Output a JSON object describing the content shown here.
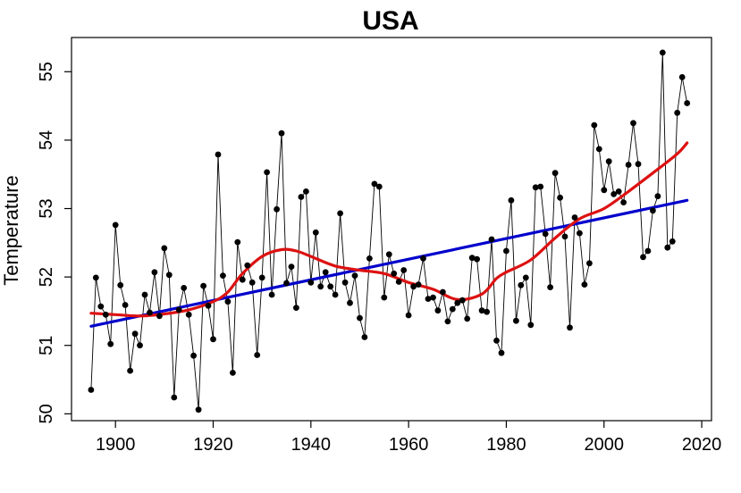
{
  "chart_data": {
    "type": "line",
    "title": "USA",
    "xlabel": "",
    "ylabel": "Temperature",
    "xlim": [
      1891,
      2022
    ],
    "ylim": [
      49.9,
      55.5
    ],
    "x_ticks": [
      1900,
      1920,
      1940,
      1960,
      1980,
      2000,
      2020
    ],
    "y_ticks": [
      50,
      51,
      52,
      53,
      54,
      55
    ],
    "grid": false,
    "legend": "none",
    "series": [
      {
        "role": "observed",
        "color": "#000000",
        "x": [
          1895,
          1896,
          1897,
          1898,
          1899,
          1900,
          1901,
          1902,
          1903,
          1904,
          1905,
          1906,
          1907,
          1908,
          1909,
          1910,
          1911,
          1912,
          1913,
          1914,
          1915,
          1916,
          1917,
          1918,
          1919,
          1920,
          1921,
          1922,
          1923,
          1924,
          1925,
          1926,
          1927,
          1928,
          1929,
          1930,
          1931,
          1932,
          1933,
          1934,
          1935,
          1936,
          1937,
          1938,
          1939,
          1940,
          1941,
          1942,
          1943,
          1944,
          1945,
          1946,
          1947,
          1948,
          1949,
          1950,
          1951,
          1952,
          1953,
          1954,
          1955,
          1956,
          1957,
          1958,
          1959,
          1960,
          1961,
          1962,
          1963,
          1964,
          1965,
          1966,
          1967,
          1968,
          1969,
          1970,
          1971,
          1972,
          1973,
          1974,
          1975,
          1976,
          1977,
          1978,
          1979,
          1980,
          1981,
          1982,
          1983,
          1984,
          1985,
          1986,
          1987,
          1988,
          1989,
          1990,
          1991,
          1992,
          1993,
          1994,
          1995,
          1996,
          1997,
          1998,
          1999,
          2000,
          2001,
          2002,
          2003,
          2004,
          2005,
          2006,
          2007,
          2008,
          2009,
          2010,
          2011,
          2012,
          2013,
          2014,
          2015,
          2016,
          2017
        ],
        "y": [
          50.35,
          51.99,
          51.57,
          51.45,
          51.02,
          52.76,
          51.88,
          51.59,
          50.63,
          51.17,
          51.0,
          51.74,
          51.48,
          52.07,
          51.43,
          52.42,
          52.03,
          50.24,
          51.52,
          51.84,
          51.45,
          50.85,
          50.06,
          51.87,
          51.58,
          51.09,
          53.79,
          52.02,
          51.64,
          50.6,
          52.51,
          51.96,
          52.17,
          51.92,
          50.86,
          51.99,
          53.53,
          51.74,
          52.99,
          54.1,
          51.91,
          52.15,
          51.55,
          53.17,
          53.25,
          51.92,
          52.65,
          51.86,
          52.07,
          51.86,
          51.74,
          52.93,
          51.92,
          51.62,
          52.02,
          51.4,
          51.12,
          52.27,
          53.36,
          53.32,
          51.7,
          52.33,
          52.05,
          51.93,
          52.1,
          51.44,
          51.86,
          51.89,
          52.27,
          51.68,
          51.7,
          51.51,
          51.78,
          51.35,
          51.53,
          51.62,
          51.66,
          51.39,
          52.28,
          52.26,
          51.51,
          51.49,
          52.55,
          51.07,
          50.89,
          52.38,
          53.12,
          51.36,
          51.88,
          51.99,
          51.3,
          53.31,
          53.32,
          52.63,
          51.85,
          53.52,
          53.16,
          52.59,
          51.26,
          52.87,
          52.64,
          51.89,
          52.2,
          54.22,
          53.87,
          53.27,
          53.69,
          53.21,
          53.25,
          53.09,
          53.64,
          54.25,
          53.65,
          52.29,
          52.38,
          52.97,
          53.18,
          55.28,
          52.43,
          52.52,
          54.4,
          54.92,
          54.54
        ]
      },
      {
        "role": "linear-trend",
        "color": "#0000cc",
        "x": [
          1895,
          2017
        ],
        "y": [
          51.28,
          53.12
        ]
      },
      {
        "role": "smoothed",
        "color": "#dd1111",
        "x": [
          1895,
          1900,
          1905,
          1910,
          1915,
          1920,
          1923,
          1926,
          1930,
          1934,
          1937,
          1940,
          1945,
          1950,
          1955,
          1960,
          1965,
          1970,
          1975,
          1978,
          1980,
          1985,
          1990,
          1995,
          2000,
          2005,
          2010,
          2015,
          2017
        ],
        "y": [
          51.47,
          51.45,
          51.43,
          51.46,
          51.52,
          51.64,
          51.78,
          52.05,
          52.3,
          52.4,
          52.38,
          52.3,
          52.16,
          52.1,
          52.05,
          51.92,
          51.82,
          51.67,
          51.75,
          51.98,
          52.07,
          52.25,
          52.57,
          52.85,
          53.0,
          53.25,
          53.52,
          53.8,
          53.96
        ]
      }
    ]
  }
}
